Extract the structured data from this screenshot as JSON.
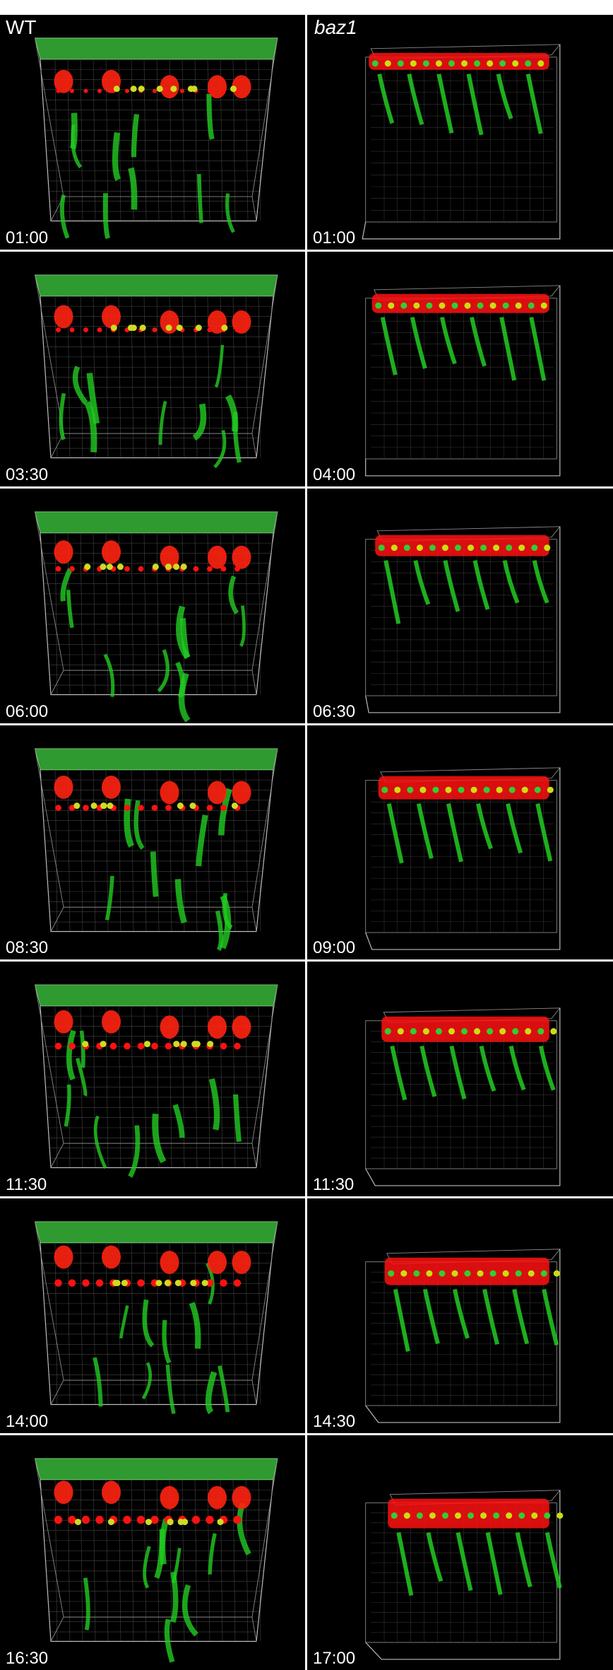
{
  "header": {
    "left": "WT",
    "right": "baz1"
  },
  "rows": [
    [
      "01:00",
      "01:00"
    ],
    [
      "03:30",
      "04:00"
    ],
    [
      "06:00",
      "06:30"
    ],
    [
      "08:30",
      "09:00"
    ],
    [
      "11:30",
      "11:30"
    ],
    [
      "14:00",
      "14:30"
    ],
    [
      "16:30",
      "17:00"
    ]
  ]
}
